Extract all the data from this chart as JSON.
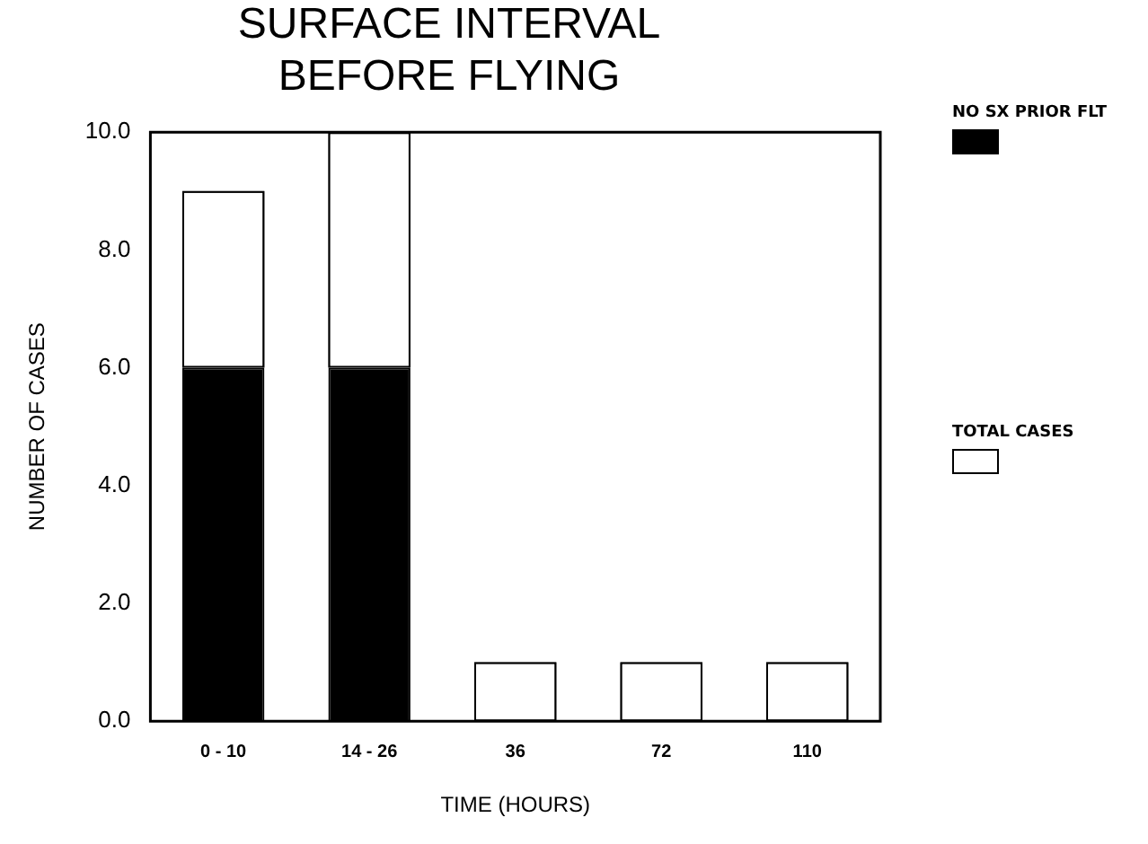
{
  "chart_data": {
    "type": "bar",
    "title": "SURFACE INTERVAL\nBEFORE FLYING",
    "xlabel": "TIME (HOURS)",
    "ylabel": "NUMBER OF CASES",
    "categories": [
      "0 - 10",
      "14 - 26",
      "36",
      "72",
      "110"
    ],
    "stacked": true,
    "series": [
      {
        "name": "NO SX PRIOR FLT",
        "color": "#000000",
        "values": [
          6,
          6,
          0,
          0,
          0
        ]
      },
      {
        "name": "TOTAL CASES",
        "color": "#ffffff",
        "values": [
          3,
          4,
          1,
          1,
          1
        ]
      }
    ],
    "ylim": [
      0,
      10
    ],
    "yticks": [
      {
        "value": 0,
        "label": "0.0"
      },
      {
        "value": 2,
        "label": "2.0"
      },
      {
        "value": 4,
        "label": "4.0"
      },
      {
        "value": 6,
        "label": "6.0"
      },
      {
        "value": 8,
        "label": "8.0"
      },
      {
        "value": 10,
        "label": "10.0"
      }
    ],
    "grid": false,
    "legend": "right"
  }
}
